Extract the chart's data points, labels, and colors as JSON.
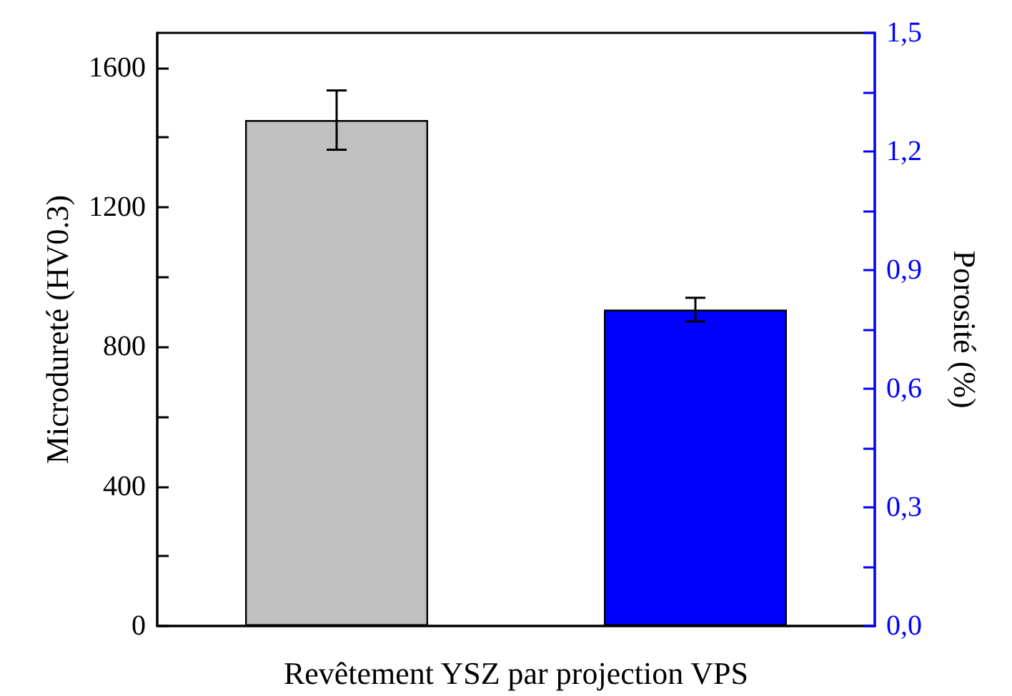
{
  "chart_data": {
    "type": "bar",
    "xlabel": "Revêtement YSZ par projection VPS",
    "ylabel": "Microdureté (HV0.3)",
    "y2label": "Porosité (%)",
    "categories": [
      null,
      null
    ],
    "series": [
      {
        "color": "#c0c0c0",
        "values": [
          1450,
          null
        ],
        "errors": [
          85,
          null
        ]
      },
      {
        "color": "#0000ff",
        "values": [
          null,
          0.8
        ],
        "errors": [
          null,
          0.03
        ],
        "axis": "y2"
      }
    ],
    "ylim": [
      0,
      1700
    ],
    "yticks": [
      0,
      {
        "value": 200,
        "label": null
      },
      400,
      {
        "value": 600,
        "label": null
      },
      800,
      {
        "value": 1000,
        "label": null
      },
      1200,
      {
        "value": 1400,
        "label": null
      },
      1600
    ],
    "y2lim": [
      0,
      1.5
    ],
    "y2ticks": [
      {
        "value": 0,
        "label": "0,0"
      },
      {
        "value": 0.15,
        "label": null
      },
      {
        "value": 0.3,
        "label": "0,3"
      },
      {
        "value": 0.45,
        "label": null
      },
      {
        "value": 0.6,
        "label": "0,6"
      },
      {
        "value": 0.75,
        "label": null
      },
      {
        "value": 0.9,
        "label": "0,9"
      },
      {
        "value": 1.05,
        "label": null
      },
      {
        "value": 1.2,
        "label": "1,2"
      },
      {
        "value": 1.35,
        "label": null
      },
      {
        "value": 1.5,
        "label": "1,5"
      }
    ],
    "grid": false
  }
}
